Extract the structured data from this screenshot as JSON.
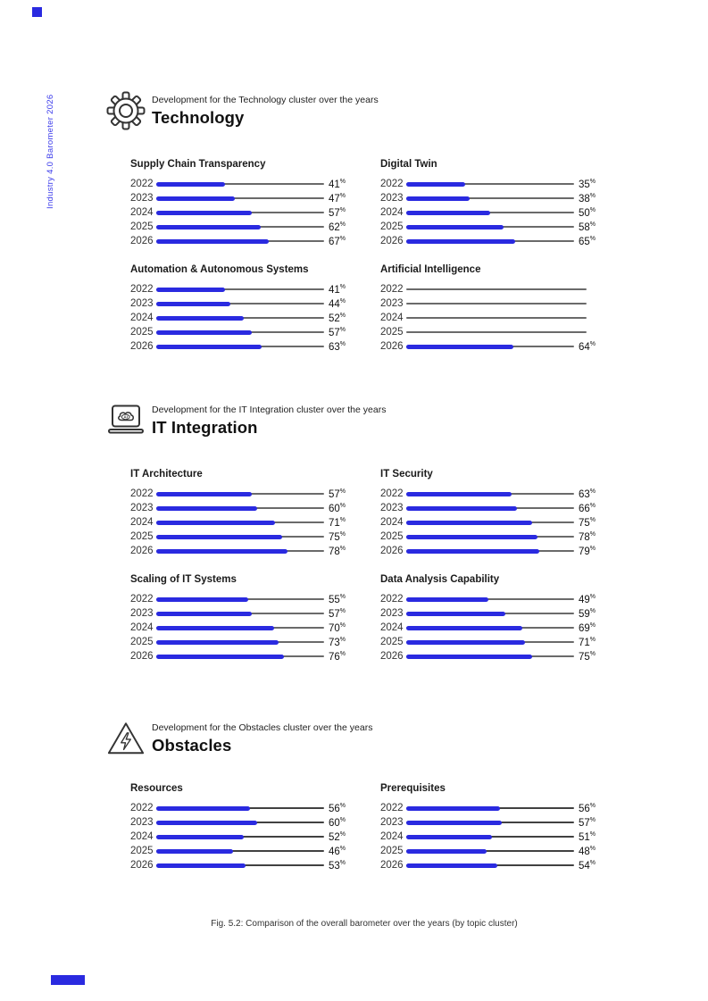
{
  "page": {
    "sidebar_label": "Industry 4.0 Barometer 2026",
    "caption": "Fig. 5.2: Comparison of the overall barometer over the years (by topic cluster)",
    "unit": "%"
  },
  "theme": {
    "accent": "#2a2ae0",
    "sidebar_blue": "#3d3deb",
    "track": "#6a6a6a",
    "track_dark": "#414141"
  },
  "years": [
    "2022",
    "2023",
    "2024",
    "2025",
    "2026"
  ],
  "sections": [
    {
      "id": "technology",
      "icon": "gear-icon",
      "kicker": "Development for the Technology cluster over the years",
      "title": "Technology",
      "charts": [
        {
          "title": "Supply Chain Transparency",
          "values": [
            41,
            47,
            57,
            62,
            67
          ]
        },
        {
          "title": "Digital Twin",
          "values": [
            35,
            38,
            50,
            58,
            65
          ]
        },
        {
          "title": "Automation & Autonomous Systems",
          "values": [
            41,
            44,
            52,
            57,
            63
          ]
        },
        {
          "title": "Artificial Intelligence",
          "values": [
            null,
            null,
            null,
            null,
            64
          ]
        }
      ]
    },
    {
      "id": "it-integration",
      "icon": "laptop-ai-icon",
      "kicker": "Development for the IT Integration cluster over the years",
      "title": "IT Integration",
      "charts": [
        {
          "title": "IT Architecture",
          "values": [
            57,
            60,
            71,
            75,
            78
          ]
        },
        {
          "title": "IT Security",
          "values": [
            63,
            66,
            75,
            78,
            79
          ]
        },
        {
          "title": "Scaling of IT Systems",
          "values": [
            55,
            57,
            70,
            73,
            76
          ]
        },
        {
          "title": "Data Analysis Capability",
          "values": [
            49,
            59,
            69,
            71,
            75
          ]
        }
      ]
    },
    {
      "id": "obstacles",
      "icon": "warning-triangle-icon",
      "kicker": "Development for the Obstacles cluster over the years",
      "title": "Obstacles",
      "charts": [
        {
          "title": "Resources",
          "values": [
            56,
            60,
            52,
            46,
            53
          ]
        },
        {
          "title": "Prerequisites",
          "values": [
            56,
            57,
            51,
            48,
            54
          ]
        }
      ]
    }
  ],
  "chart_data": [
    {
      "type": "bar",
      "orientation": "horizontal",
      "cluster": "Technology",
      "title": "Supply Chain Transparency",
      "categories": [
        "2022",
        "2023",
        "2024",
        "2025",
        "2026"
      ],
      "values": [
        41,
        47,
        57,
        62,
        67
      ],
      "unit": "%",
      "xlim": [
        0,
        100
      ],
      "grid": false,
      "bar_color": "#2a2ae0"
    },
    {
      "type": "bar",
      "orientation": "horizontal",
      "cluster": "Technology",
      "title": "Digital Twin",
      "categories": [
        "2022",
        "2023",
        "2024",
        "2025",
        "2026"
      ],
      "values": [
        35,
        38,
        50,
        58,
        65
      ],
      "unit": "%",
      "xlim": [
        0,
        100
      ],
      "grid": false,
      "bar_color": "#2a2ae0"
    },
    {
      "type": "bar",
      "orientation": "horizontal",
      "cluster": "Technology",
      "title": "Automation & Autonomous Systems",
      "categories": [
        "2022",
        "2023",
        "2024",
        "2025",
        "2026"
      ],
      "values": [
        41,
        44,
        52,
        57,
        63
      ],
      "unit": "%",
      "xlim": [
        0,
        100
      ],
      "grid": false,
      "bar_color": "#2a2ae0"
    },
    {
      "type": "bar",
      "orientation": "horizontal",
      "cluster": "Technology",
      "title": "Artificial Intelligence",
      "categories": [
        "2022",
        "2023",
        "2024",
        "2025",
        "2026"
      ],
      "values": [
        null,
        null,
        null,
        null,
        64
      ],
      "unit": "%",
      "xlim": [
        0,
        100
      ],
      "grid": false,
      "bar_color": "#2a2ae0"
    },
    {
      "type": "bar",
      "orientation": "horizontal",
      "cluster": "IT Integration",
      "title": "IT Architecture",
      "categories": [
        "2022",
        "2023",
        "2024",
        "2025",
        "2026"
      ],
      "values": [
        57,
        60,
        71,
        75,
        78
      ],
      "unit": "%",
      "xlim": [
        0,
        100
      ],
      "grid": false,
      "bar_color": "#2a2ae0"
    },
    {
      "type": "bar",
      "orientation": "horizontal",
      "cluster": "IT Integration",
      "title": "IT Security",
      "categories": [
        "2022",
        "2023",
        "2024",
        "2025",
        "2026"
      ],
      "values": [
        63,
        66,
        75,
        78,
        79
      ],
      "unit": "%",
      "xlim": [
        0,
        100
      ],
      "grid": false,
      "bar_color": "#2a2ae0"
    },
    {
      "type": "bar",
      "orientation": "horizontal",
      "cluster": "IT Integration",
      "title": "Scaling of IT Systems",
      "categories": [
        "2022",
        "2023",
        "2024",
        "2025",
        "2026"
      ],
      "values": [
        55,
        57,
        70,
        73,
        76
      ],
      "unit": "%",
      "xlim": [
        0,
        100
      ],
      "grid": false,
      "bar_color": "#2a2ae0"
    },
    {
      "type": "bar",
      "orientation": "horizontal",
      "cluster": "IT Integration",
      "title": "Data Analysis Capability",
      "categories": [
        "2022",
        "2023",
        "2024",
        "2025",
        "2026"
      ],
      "values": [
        49,
        59,
        69,
        71,
        75
      ],
      "unit": "%",
      "xlim": [
        0,
        100
      ],
      "grid": false,
      "bar_color": "#2a2ae0"
    },
    {
      "type": "bar",
      "orientation": "horizontal",
      "cluster": "Obstacles",
      "title": "Resources",
      "categories": [
        "2022",
        "2023",
        "2024",
        "2025",
        "2026"
      ],
      "values": [
        56,
        60,
        52,
        46,
        53
      ],
      "unit": "%",
      "xlim": [
        0,
        100
      ],
      "grid": false,
      "bar_color": "#2a2ae0"
    },
    {
      "type": "bar",
      "orientation": "horizontal",
      "cluster": "Obstacles",
      "title": "Prerequisites",
      "categories": [
        "2022",
        "2023",
        "2024",
        "2025",
        "2026"
      ],
      "values": [
        56,
        57,
        51,
        48,
        54
      ],
      "unit": "%",
      "xlim": [
        0,
        100
      ],
      "grid": false,
      "bar_color": "#2a2ae0"
    }
  ]
}
